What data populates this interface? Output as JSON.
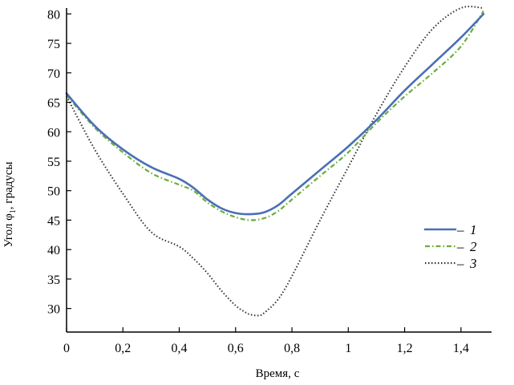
{
  "chart_data": {
    "type": "line",
    "title": "",
    "xlabel": "Время, с",
    "ylabel_main": "Угол φ",
    "ylabel_sub": "1",
    "ylabel_unit": ", градусы",
    "xlim": [
      0,
      1.5
    ],
    "ylim": [
      26,
      81
    ],
    "x_ticks": [
      0,
      0.2,
      0.4,
      0.6,
      0.8,
      1,
      1.2,
      1.4
    ],
    "x_tick_labels": [
      "0",
      "0,2",
      "0,4",
      "0,6",
      "0,8",
      "1",
      "1,2",
      "1,4"
    ],
    "y_ticks": [
      30,
      35,
      40,
      45,
      50,
      55,
      60,
      65,
      70,
      75,
      80
    ],
    "y_tick_labels": [
      "30",
      "35",
      "40",
      "45",
      "50",
      "55",
      "60",
      "65",
      "70",
      "75",
      "80"
    ],
    "grid": false,
    "legend_position": "right",
    "legend_dash": "–",
    "series": [
      {
        "name": "1",
        "color": "#4a6fb5",
        "style": "solid",
        "x": [
          0,
          0.1,
          0.2,
          0.3,
          0.4,
          0.45,
          0.5,
          0.55,
          0.6,
          0.65,
          0.7,
          0.75,
          0.8,
          0.9,
          1.0,
          1.1,
          1.2,
          1.3,
          1.4,
          1.48
        ],
        "y": [
          66.5,
          61.0,
          57.0,
          54.0,
          52.0,
          50.5,
          48.5,
          47.0,
          46.2,
          46.0,
          46.3,
          47.5,
          49.5,
          53.5,
          57.5,
          62.0,
          67.0,
          71.5,
          76.0,
          80.0
        ]
      },
      {
        "name": "2",
        "color": "#6cae3a",
        "style": "dashdot",
        "x": [
          0,
          0.1,
          0.2,
          0.3,
          0.4,
          0.45,
          0.5,
          0.55,
          0.6,
          0.65,
          0.7,
          0.75,
          0.8,
          0.9,
          1.0,
          1.1,
          1.2,
          1.3,
          1.4,
          1.48
        ],
        "y": [
          66.2,
          60.7,
          56.5,
          53.0,
          51.0,
          50.0,
          48.0,
          46.5,
          45.5,
          45.0,
          45.3,
          46.5,
          48.5,
          52.5,
          56.5,
          61.5,
          66.0,
          70.0,
          74.5,
          80.5
        ]
      },
      {
        "name": "3",
        "color": "#333333",
        "style": "dotted",
        "x": [
          0,
          0.1,
          0.2,
          0.3,
          0.4,
          0.45,
          0.5,
          0.55,
          0.6,
          0.63,
          0.65,
          0.68,
          0.7,
          0.75,
          0.8,
          0.9,
          1.0,
          1.1,
          1.2,
          1.3,
          1.4,
          1.48
        ],
        "y": [
          66.0,
          57.0,
          49.5,
          43.0,
          40.5,
          38.5,
          36.0,
          33.0,
          30.5,
          29.5,
          29.0,
          28.8,
          29.2,
          31.5,
          35.5,
          45.0,
          54.0,
          63.0,
          71.0,
          77.5,
          81.0,
          81.0
        ]
      }
    ]
  }
}
